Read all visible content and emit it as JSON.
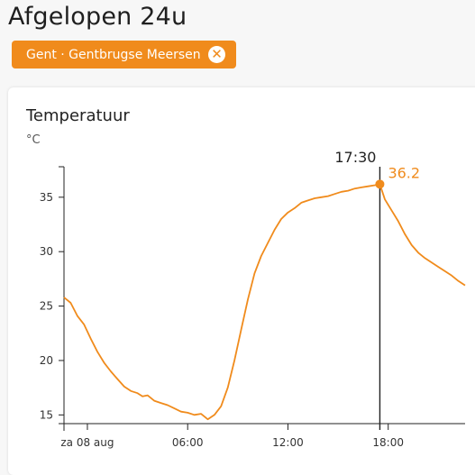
{
  "page": {
    "title": "Afgelopen 24u"
  },
  "filter": {
    "label": "Gent · Gentbrugse Meersen",
    "close_icon": "close-circle-icon"
  },
  "card": {
    "title": "Temperatuur",
    "unit": "°C"
  },
  "colors": {
    "accent": "#f08b1c",
    "line": "#f08b1c",
    "axis": "#222222"
  },
  "chart_data": {
    "type": "line",
    "title": "Temperatuur",
    "ylabel": "°C",
    "xlabel": "",
    "ylim": [
      14.2,
      37.8
    ],
    "yticks": [
      15,
      20,
      25,
      30,
      35
    ],
    "x_range_hours": [
      -1.4,
      22.6
    ],
    "xticks": [
      {
        "label": "za 08 aug",
        "hour": 0
      },
      {
        "label": "06:00",
        "hour": 6
      },
      {
        "label": "12:00",
        "hour": 12
      },
      {
        "label": "18:00",
        "hour": 18
      }
    ],
    "series": [
      {
        "points": [
          [
            -1.4,
            25.8
          ],
          [
            -1.0,
            25.3
          ],
          [
            -0.6,
            24.1
          ],
          [
            -0.2,
            23.3
          ],
          [
            0.2,
            22.0
          ],
          [
            0.6,
            20.8
          ],
          [
            1.0,
            19.8
          ],
          [
            1.4,
            19.0
          ],
          [
            1.8,
            18.3
          ],
          [
            2.2,
            17.6
          ],
          [
            2.6,
            17.2
          ],
          [
            3.0,
            17.0
          ],
          [
            3.3,
            16.7
          ],
          [
            3.6,
            16.8
          ],
          [
            4.0,
            16.3
          ],
          [
            4.4,
            16.1
          ],
          [
            4.8,
            15.9
          ],
          [
            5.2,
            15.6
          ],
          [
            5.6,
            15.3
          ],
          [
            6.0,
            15.2
          ],
          [
            6.4,
            15.0
          ],
          [
            6.8,
            15.1
          ],
          [
            7.2,
            14.6
          ],
          [
            7.6,
            15.0
          ],
          [
            8.0,
            15.8
          ],
          [
            8.4,
            17.5
          ],
          [
            8.8,
            20.0
          ],
          [
            9.2,
            22.8
          ],
          [
            9.6,
            25.6
          ],
          [
            10.0,
            28.0
          ],
          [
            10.4,
            29.6
          ],
          [
            10.8,
            30.8
          ],
          [
            11.2,
            32.0
          ],
          [
            11.6,
            33.0
          ],
          [
            12.0,
            33.6
          ],
          [
            12.4,
            34.0
          ],
          [
            12.8,
            34.5
          ],
          [
            13.2,
            34.7
          ],
          [
            13.6,
            34.9
          ],
          [
            14.0,
            35.0
          ],
          [
            14.4,
            35.1
          ],
          [
            14.8,
            35.3
          ],
          [
            15.2,
            35.5
          ],
          [
            15.6,
            35.6
          ],
          [
            16.0,
            35.8
          ],
          [
            16.4,
            35.9
          ],
          [
            16.8,
            36.0
          ],
          [
            17.2,
            36.1
          ],
          [
            17.5,
            36.2
          ],
          [
            17.8,
            34.8
          ],
          [
            18.2,
            33.8
          ],
          [
            18.6,
            32.8
          ],
          [
            19.0,
            31.6
          ],
          [
            19.4,
            30.6
          ],
          [
            19.8,
            29.9
          ],
          [
            20.2,
            29.4
          ],
          [
            20.6,
            29.0
          ],
          [
            21.0,
            28.6
          ],
          [
            21.4,
            28.2
          ],
          [
            21.8,
            27.8
          ],
          [
            22.2,
            27.3
          ],
          [
            22.6,
            26.9
          ]
        ]
      }
    ],
    "marker": {
      "time_label": "17:30",
      "hour": 17.5,
      "value": 36.2,
      "value_label": "36.2"
    }
  }
}
